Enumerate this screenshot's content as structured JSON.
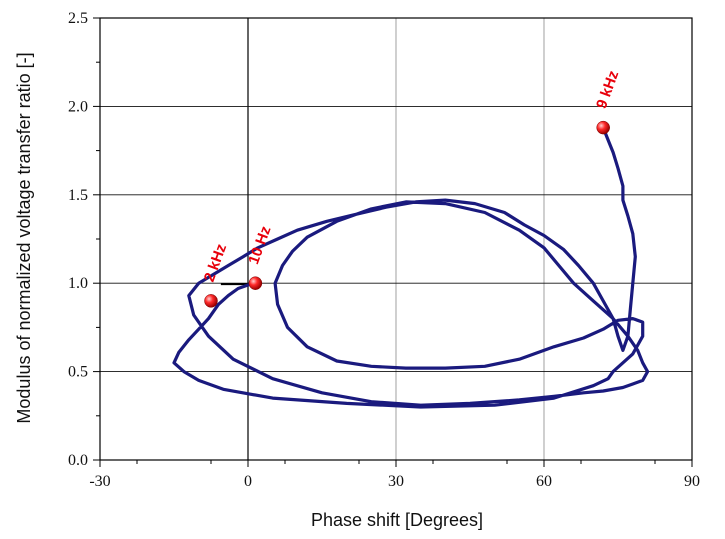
{
  "chart_data": {
    "type": "line",
    "title": "",
    "xlabel": "Phase shift [Degrees]",
    "ylabel": "Modulus of normalized voltage transfer ratio [-]",
    "xlim": [
      -30,
      90
    ],
    "ylim": [
      0,
      2.5
    ],
    "xticks": [
      -30,
      0,
      30,
      60,
      90
    ],
    "xtick_labels": [
      "-30",
      "0",
      "30",
      "60",
      "90"
    ],
    "yticks": [
      0,
      0.5,
      1.0,
      1.5,
      2.0,
      2.5
    ],
    "ytick_labels": [
      "0.0",
      "0.5",
      "1.0",
      "1.5",
      "2.0",
      "2.5"
    ],
    "grid": true,
    "line_color": "#1a1a7e",
    "marker_color": "#e8000b",
    "series": [
      {
        "x": [
          1.5,
          0,
          -2,
          -4,
          -6,
          -8,
          -10,
          -12,
          -14,
          -15,
          -13,
          -10,
          -5,
          5,
          20,
          35,
          50,
          62,
          70,
          73,
          74,
          76,
          78,
          80,
          80,
          78,
          75,
          72,
          68,
          62,
          55,
          48,
          40,
          32,
          25,
          18,
          12,
          8,
          6,
          5.5,
          7,
          9,
          12,
          18,
          25,
          32,
          40,
          48,
          55,
          60,
          63,
          66,
          70,
          74,
          77,
          79,
          80,
          81,
          80,
          78,
          76,
          72,
          68,
          62,
          55,
          45,
          35,
          25,
          15,
          5,
          -3,
          -8,
          -11,
          -12,
          -10,
          -7,
          -4,
          -1,
          2,
          6,
          10,
          16,
          22,
          28,
          34,
          40,
          46,
          52,
          56,
          60,
          64,
          67,
          70,
          72,
          74,
          75,
          76,
          77,
          77.5,
          78,
          78.5,
          78,
          77,
          76,
          76,
          75,
          74,
          73,
          72
        ],
        "y": [
          1.0,
          0.99,
          0.97,
          0.93,
          0.88,
          0.8,
          0.74,
          0.68,
          0.61,
          0.55,
          0.5,
          0.45,
          0.4,
          0.35,
          0.32,
          0.3,
          0.31,
          0.35,
          0.42,
          0.46,
          0.5,
          0.55,
          0.6,
          0.7,
          0.78,
          0.8,
          0.79,
          0.74,
          0.69,
          0.64,
          0.57,
          0.53,
          0.52,
          0.52,
          0.53,
          0.56,
          0.64,
          0.75,
          0.88,
          1.0,
          1.1,
          1.18,
          1.26,
          1.35,
          1.42,
          1.46,
          1.45,
          1.4,
          1.3,
          1.2,
          1.1,
          1.0,
          0.9,
          0.8,
          0.7,
          0.62,
          0.55,
          0.5,
          0.45,
          0.43,
          0.41,
          0.39,
          0.38,
          0.36,
          0.34,
          0.32,
          0.31,
          0.33,
          0.38,
          0.46,
          0.57,
          0.7,
          0.82,
          0.93,
          1.0,
          1.05,
          1.1,
          1.15,
          1.2,
          1.25,
          1.3,
          1.35,
          1.39,
          1.43,
          1.46,
          1.47,
          1.45,
          1.4,
          1.33,
          1.27,
          1.19,
          1.1,
          1.0,
          0.9,
          0.8,
          0.7,
          0.62,
          0.7,
          0.85,
          1.0,
          1.15,
          1.28,
          1.38,
          1.47,
          1.55,
          1.65,
          1.74,
          1.81,
          1.88
        ]
      }
    ],
    "markers": [
      {
        "label": "9 kHz",
        "x": 72.0,
        "y": 1.88
      },
      {
        "label": "10 Hz",
        "x": 1.5,
        "y": 1.0
      },
      {
        "label": "2 kHz",
        "x": -7.5,
        "y": 0.9
      }
    ]
  }
}
